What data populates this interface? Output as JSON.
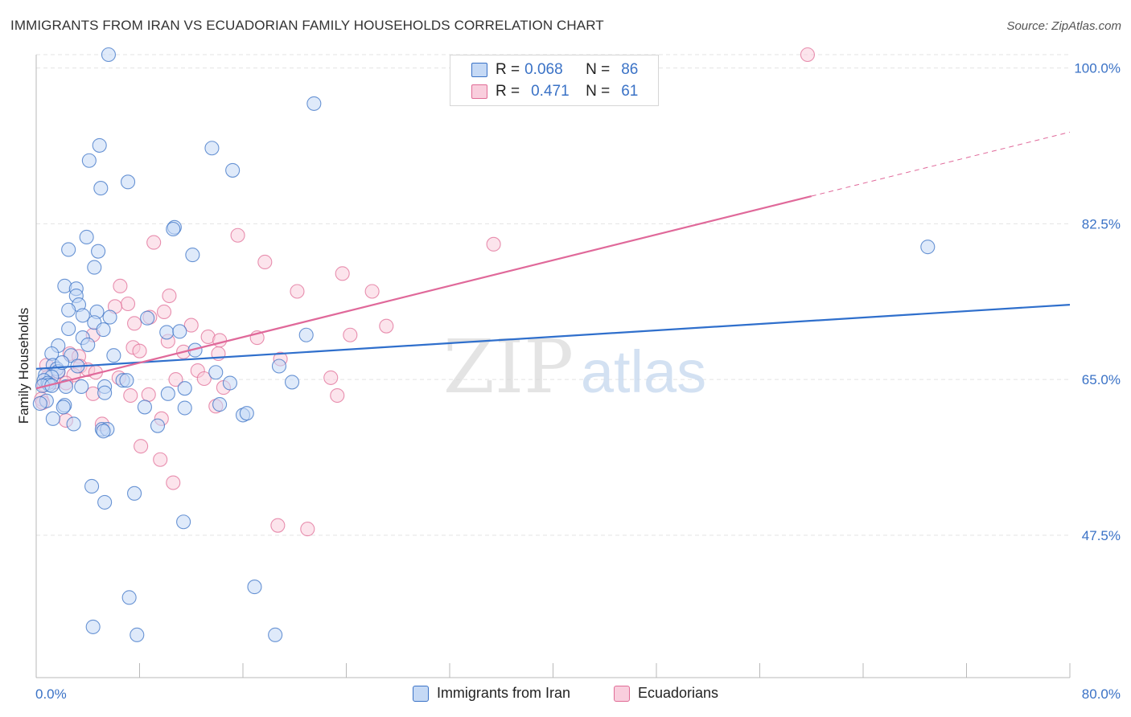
{
  "title": "IMMIGRANTS FROM IRAN VS ECUADORIAN FAMILY HOUSEHOLDS CORRELATION CHART",
  "source": "Source: ZipAtlas.com",
  "watermark": {
    "zip": "ZIP",
    "atlas": "atlas"
  },
  "colors": {
    "blue": "#3a72c6",
    "blue_fill": "#c5d9f5",
    "blue_line": "#2f6fcc",
    "pink": "#e06c96",
    "pink_fill": "#f9cedd",
    "pink_line": "#e0699a",
    "grid": "#e3e3e3"
  },
  "legend": {
    "rows": [
      {
        "r_label": "R =",
        "r_value": "0.068",
        "n_label": "N =",
        "n_value": "86"
      },
      {
        "r_label": "R =",
        "r_value": "0.471",
        "n_label": "N =",
        "n_value": "61"
      }
    ]
  },
  "bottom_legend": {
    "series1": "Immigrants from Iran",
    "series2": "Ecuadorians"
  },
  "chart_data": {
    "type": "scatter",
    "title": "IMMIGRANTS FROM IRAN VS ECUADORIAN FAMILY HOUSEHOLDS CORRELATION CHART",
    "xlabel": "",
    "ylabel": "Family Households",
    "xlim": [
      0,
      80
    ],
    "ylim": [
      31.5,
      101.5
    ],
    "x_tick_labels": [
      "0.0%",
      "80.0%"
    ],
    "y_ticks": [
      {
        "value": 100.0,
        "label": "100.0%"
      },
      {
        "value": 82.5,
        "label": "82.5%"
      },
      {
        "value": 65.0,
        "label": "65.0%"
      },
      {
        "value": 47.5,
        "label": "47.5%"
      }
    ],
    "series": [
      {
        "name": "Immigrants from Iran",
        "R": 0.068,
        "N": 86,
        "trend": {
          "x": [
            0,
            80
          ],
          "y": [
            66.2,
            73.4
          ]
        },
        "points": [
          [
            5.6,
            101.5
          ],
          [
            21.5,
            96.0
          ],
          [
            4.9,
            91.3
          ],
          [
            13.6,
            91.0
          ],
          [
            4.1,
            89.6
          ],
          [
            15.2,
            88.5
          ],
          [
            5.0,
            86.5
          ],
          [
            7.1,
            87.2
          ],
          [
            10.7,
            82.1
          ],
          [
            10.6,
            81.9
          ],
          [
            3.9,
            81.0
          ],
          [
            2.5,
            79.6
          ],
          [
            4.8,
            79.4
          ],
          [
            12.1,
            79.0
          ],
          [
            4.5,
            77.6
          ],
          [
            2.2,
            75.5
          ],
          [
            3.1,
            75.2
          ],
          [
            3.1,
            74.4
          ],
          [
            3.3,
            73.4
          ],
          [
            2.5,
            72.8
          ],
          [
            4.7,
            72.6
          ],
          [
            3.6,
            72.2
          ],
          [
            5.7,
            72.0
          ],
          [
            8.6,
            71.9
          ],
          [
            4.5,
            71.4
          ],
          [
            2.5,
            70.7
          ],
          [
            5.2,
            70.6
          ],
          [
            10.1,
            70.3
          ],
          [
            11.1,
            70.4
          ],
          [
            20.9,
            70.0
          ],
          [
            3.6,
            69.7
          ],
          [
            1.7,
            68.8
          ],
          [
            12.3,
            68.3
          ],
          [
            1.2,
            67.9
          ],
          [
            2.7,
            67.7
          ],
          [
            6.0,
            67.7
          ],
          [
            1.3,
            66.6
          ],
          [
            3.2,
            66.5
          ],
          [
            1.6,
            66.2
          ],
          [
            18.8,
            66.5
          ],
          [
            1.7,
            65.9
          ],
          [
            0.7,
            65.5
          ],
          [
            13.9,
            65.8
          ],
          [
            1.2,
            65.3
          ],
          [
            0.6,
            64.9
          ],
          [
            6.7,
            64.9
          ],
          [
            7.0,
            64.9
          ],
          [
            19.8,
            64.7
          ],
          [
            0.9,
            64.6
          ],
          [
            1.0,
            64.4
          ],
          [
            0.5,
            64.3
          ],
          [
            1.2,
            64.3
          ],
          [
            15.0,
            64.6
          ],
          [
            2.3,
            64.2
          ],
          [
            3.5,
            64.2
          ],
          [
            5.3,
            64.2
          ],
          [
            11.5,
            64.0
          ],
          [
            10.2,
            63.4
          ],
          [
            0.8,
            62.6
          ],
          [
            0.3,
            62.3
          ],
          [
            2.2,
            62.1
          ],
          [
            2.1,
            61.9
          ],
          [
            8.4,
            61.9
          ],
          [
            14.2,
            62.2
          ],
          [
            11.5,
            61.8
          ],
          [
            16.0,
            61.0
          ],
          [
            16.3,
            61.2
          ],
          [
            1.3,
            60.6
          ],
          [
            2.9,
            60.0
          ],
          [
            9.4,
            59.8
          ],
          [
            5.1,
            59.4
          ],
          [
            5.5,
            59.4
          ],
          [
            5.2,
            59.2
          ],
          [
            4.3,
            53.0
          ],
          [
            7.6,
            52.2
          ],
          [
            5.3,
            51.2
          ],
          [
            11.4,
            49.0
          ],
          [
            69.0,
            79.9
          ],
          [
            7.2,
            40.5
          ],
          [
            16.9,
            41.7
          ],
          [
            4.4,
            37.2
          ],
          [
            7.8,
            36.3
          ],
          [
            18.5,
            36.3
          ],
          [
            5.3,
            63.5
          ],
          [
            2.0,
            66.9
          ],
          [
            4.0,
            68.9
          ]
        ]
      },
      {
        "name": "Ecuadorians",
        "R": 0.471,
        "N": 61,
        "trend": {
          "x": [
            0,
            60
          ],
          "y": [
            64.0,
            85.6
          ]
        },
        "trend_dashed": {
          "x": [
            60,
            80
          ],
          "y": [
            85.6,
            92.8
          ]
        },
        "points": [
          [
            59.7,
            101.5
          ],
          [
            15.6,
            81.2
          ],
          [
            9.1,
            80.4
          ],
          [
            35.4,
            80.2
          ],
          [
            17.7,
            78.2
          ],
          [
            23.7,
            76.9
          ],
          [
            6.5,
            75.5
          ],
          [
            20.2,
            74.9
          ],
          [
            26.0,
            74.9
          ],
          [
            10.3,
            74.4
          ],
          [
            7.1,
            73.5
          ],
          [
            6.1,
            73.2
          ],
          [
            9.9,
            72.6
          ],
          [
            8.8,
            72.0
          ],
          [
            7.6,
            71.3
          ],
          [
            12.0,
            71.1
          ],
          [
            27.1,
            71.0
          ],
          [
            4.4,
            70.0
          ],
          [
            13.3,
            69.8
          ],
          [
            14.2,
            69.4
          ],
          [
            17.1,
            69.7
          ],
          [
            24.3,
            70.0
          ],
          [
            10.2,
            69.3
          ],
          [
            7.5,
            68.6
          ],
          [
            8.0,
            68.2
          ],
          [
            11.4,
            68.1
          ],
          [
            14.1,
            67.9
          ],
          [
            2.6,
            67.9
          ],
          [
            3.3,
            67.6
          ],
          [
            18.9,
            67.3
          ],
          [
            0.8,
            66.6
          ],
          [
            3.4,
            66.5
          ],
          [
            4.0,
            66.1
          ],
          [
            12.5,
            66.0
          ],
          [
            0.9,
            65.3
          ],
          [
            1.7,
            65.8
          ],
          [
            4.6,
            65.8
          ],
          [
            2.9,
            65.5
          ],
          [
            13.0,
            65.1
          ],
          [
            10.8,
            65.0
          ],
          [
            6.4,
            65.2
          ],
          [
            22.8,
            65.2
          ],
          [
            1.4,
            64.7
          ],
          [
            2.3,
            64.6
          ],
          [
            0.6,
            64.4
          ],
          [
            14.5,
            64.1
          ],
          [
            4.4,
            63.4
          ],
          [
            7.3,
            63.2
          ],
          [
            8.7,
            63.3
          ],
          [
            23.3,
            63.2
          ],
          [
            0.4,
            62.8
          ],
          [
            9.7,
            60.6
          ],
          [
            2.3,
            60.4
          ],
          [
            5.1,
            60.0
          ],
          [
            8.1,
            57.5
          ],
          [
            9.6,
            56.0
          ],
          [
            10.6,
            53.4
          ],
          [
            13.9,
            62.0
          ],
          [
            18.7,
            48.6
          ],
          [
            21.0,
            48.2
          ],
          [
            0.5,
            62.4
          ]
        ]
      }
    ]
  }
}
